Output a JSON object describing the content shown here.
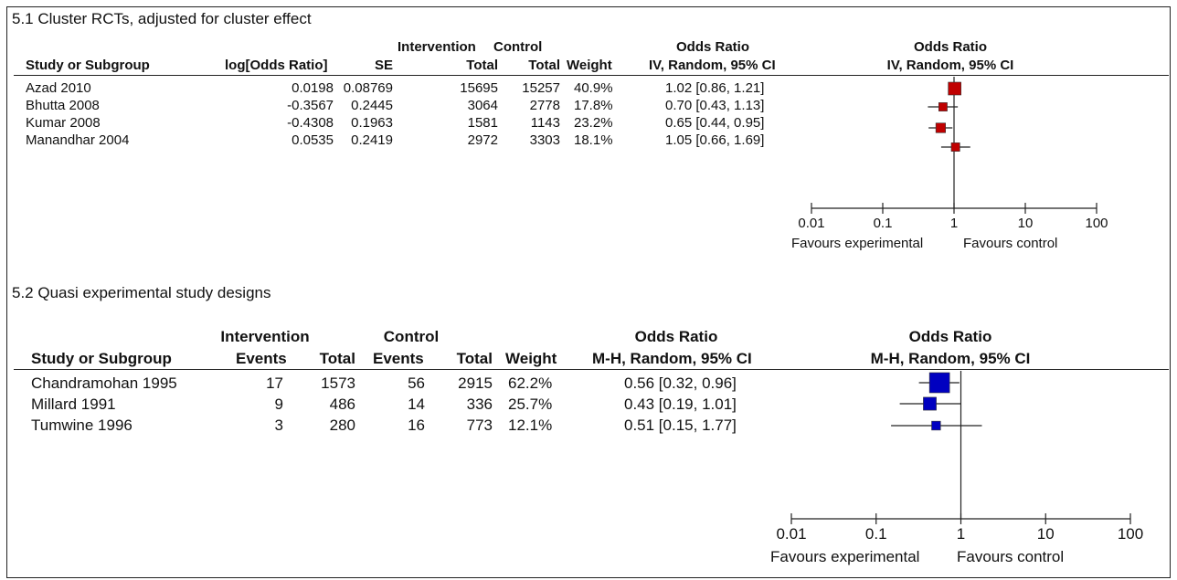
{
  "chart_data": [
    {
      "type": "forest",
      "title": "5.1 Cluster RCTs, adjusted for cluster effect",
      "headers": {
        "group_intervention": "Intervention",
        "group_control": "Control",
        "or_top": "Odds Ratio",
        "plot_top": "Odds Ratio",
        "study": "Study or Subgroup",
        "log_or": "log[Odds Ratio]",
        "se": "SE",
        "int_total": "Total",
        "ctrl_total": "Total",
        "weight": "Weight",
        "or_method": "IV, Random, 95% CI",
        "plot_method": "IV, Random, 95% CI"
      },
      "rows": [
        {
          "study": "Azad 2010",
          "log_or": "0.0198",
          "se": "0.08769",
          "int_total": "15695",
          "ctrl_total": "15257",
          "weight": "40.9%",
          "ci_text": "1.02 [0.86, 1.21]",
          "or": 1.02,
          "lo": 0.86,
          "hi": 1.21,
          "w": 40.9
        },
        {
          "study": "Bhutta 2008",
          "log_or": "-0.3567",
          "se": "0.2445",
          "int_total": "3064",
          "ctrl_total": "2778",
          "weight": "17.8%",
          "ci_text": "0.70 [0.43, 1.13]",
          "or": 0.7,
          "lo": 0.43,
          "hi": 1.13,
          "w": 17.8
        },
        {
          "study": "Kumar 2008",
          "log_or": "-0.4308",
          "se": "0.1963",
          "int_total": "1581",
          "ctrl_total": "1143",
          "weight": "23.2%",
          "ci_text": "0.65 [0.44, 0.95]",
          "or": 0.65,
          "lo": 0.44,
          "hi": 0.95,
          "w": 23.2
        },
        {
          "study": "Manandhar 2004",
          "log_or": "0.0535",
          "se": "0.2419",
          "int_total": "2972",
          "ctrl_total": "3303",
          "weight": "18.1%",
          "ci_text": "1.05 [0.66, 1.69]",
          "or": 1.05,
          "lo": 0.66,
          "hi": 1.69,
          "w": 18.1
        }
      ],
      "axis": {
        "ticks": [
          0.01,
          0.1,
          1,
          10,
          100
        ],
        "tick_labels": [
          "0.01",
          "0.1",
          "1",
          "10",
          "100"
        ],
        "scale": "log",
        "xlim": [
          0.01,
          100
        ]
      },
      "favours_left": "Favours experimental",
      "favours_right": "Favours control",
      "marker_color": "#c00000"
    },
    {
      "type": "forest",
      "title": "5.2 Quasi experimental study designs",
      "headers": {
        "group_intervention": "Intervention",
        "group_control": "Control",
        "or_top": "Odds Ratio",
        "plot_top": "Odds Ratio",
        "study": "Study or Subgroup",
        "int_events": "Events",
        "int_total": "Total",
        "ctrl_events": "Events",
        "ctrl_total": "Total",
        "weight": "Weight",
        "or_method": "M-H, Random, 95% CI",
        "plot_method": "M-H, Random, 95% CI"
      },
      "rows": [
        {
          "study": "Chandramohan 1995",
          "int_events": "17",
          "int_total": "1573",
          "ctrl_events": "56",
          "ctrl_total": "2915",
          "weight": "62.2%",
          "ci_text": "0.56 [0.32, 0.96]",
          "or": 0.56,
          "lo": 0.32,
          "hi": 0.96,
          "w": 62.2
        },
        {
          "study": "Millard 1991",
          "int_events": "9",
          "int_total": "486",
          "ctrl_events": "14",
          "ctrl_total": "336",
          "weight": "25.7%",
          "ci_text": "0.43 [0.19, 1.01]",
          "or": 0.43,
          "lo": 0.19,
          "hi": 1.01,
          "w": 25.7
        },
        {
          "study": "Tumwine 1996",
          "int_events": "3",
          "int_total": "280",
          "ctrl_events": "16",
          "ctrl_total": "773",
          "weight": "12.1%",
          "ci_text": "0.51 [0.15, 1.77]",
          "or": 0.51,
          "lo": 0.15,
          "hi": 1.77,
          "w": 12.1
        }
      ],
      "axis": {
        "ticks": [
          0.01,
          0.1,
          1,
          10,
          100
        ],
        "tick_labels": [
          "0.01",
          "0.1",
          "1",
          "10",
          "100"
        ],
        "scale": "log",
        "xlim": [
          0.01,
          100
        ]
      },
      "favours_left": "Favours experimental",
      "favours_right": "Favours control",
      "marker_color": "#0000c0"
    }
  ]
}
